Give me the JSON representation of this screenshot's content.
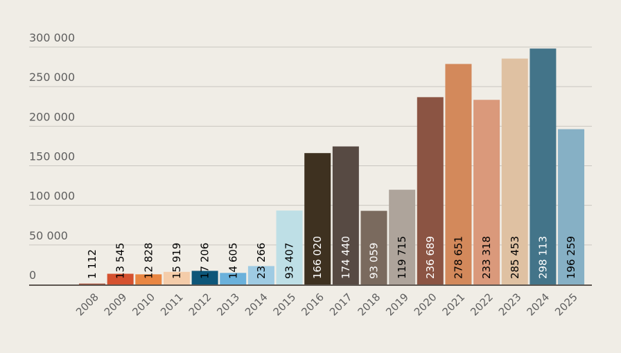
{
  "chart_data": {
    "type": "bar",
    "title": "",
    "xlabel": "",
    "ylabel": "",
    "ylim": [
      0,
      300000
    ],
    "grid": true,
    "yticks": [
      0,
      50000,
      100000,
      150000,
      200000,
      250000,
      300000
    ],
    "ytick_labels": [
      "0",
      "50 000",
      "100 000",
      "150 000",
      "200 000",
      "250 000",
      "300 000"
    ],
    "categories": [
      "2008",
      "2009",
      "2010",
      "2011",
      "2012",
      "2013",
      "2014",
      "2015",
      "2016",
      "2017",
      "2018",
      "2019",
      "2020",
      "2021",
      "2022",
      "2023",
      "2024",
      "2025"
    ],
    "values": [
      1112,
      13545,
      12828,
      15919,
      17206,
      14605,
      23266,
      93407,
      166020,
      174440,
      93059,
      119715,
      236689,
      278651,
      233318,
      285453,
      298113,
      196259
    ],
    "value_labels": [
      "1 112",
      "13 545",
      "12 828",
      "15 919",
      "17 206",
      "14 605",
      "23 266",
      "93 407",
      "166 020",
      "174 440",
      "93 059",
      "119 715",
      "236 689",
      "278 651",
      "233 318",
      "285 453",
      "298 113",
      "196 259"
    ],
    "colors": [
      "#a8513a",
      "#d5512f",
      "#e98642",
      "#f4cca9",
      "#0d5679",
      "#6bb1db",
      "#9fcbe3",
      "#bedfe6",
      "#3e3120",
      "#574a43",
      "#7a6a5e",
      "#aea49b",
      "#8b5443",
      "#d3895b",
      "#da997b",
      "#dfc1a2",
      "#437489",
      "#86b0c5"
    ],
    "label_colors": [
      "#000000",
      "#000000",
      "#000000",
      "#000000",
      "#000000",
      "#000000",
      "#000000",
      "#000000",
      "#ffffff",
      "#ffffff",
      "#ffffff",
      "#000000",
      "#ffffff",
      "#000000",
      "#000000",
      "#000000",
      "#ffffff",
      "#000000"
    ]
  }
}
